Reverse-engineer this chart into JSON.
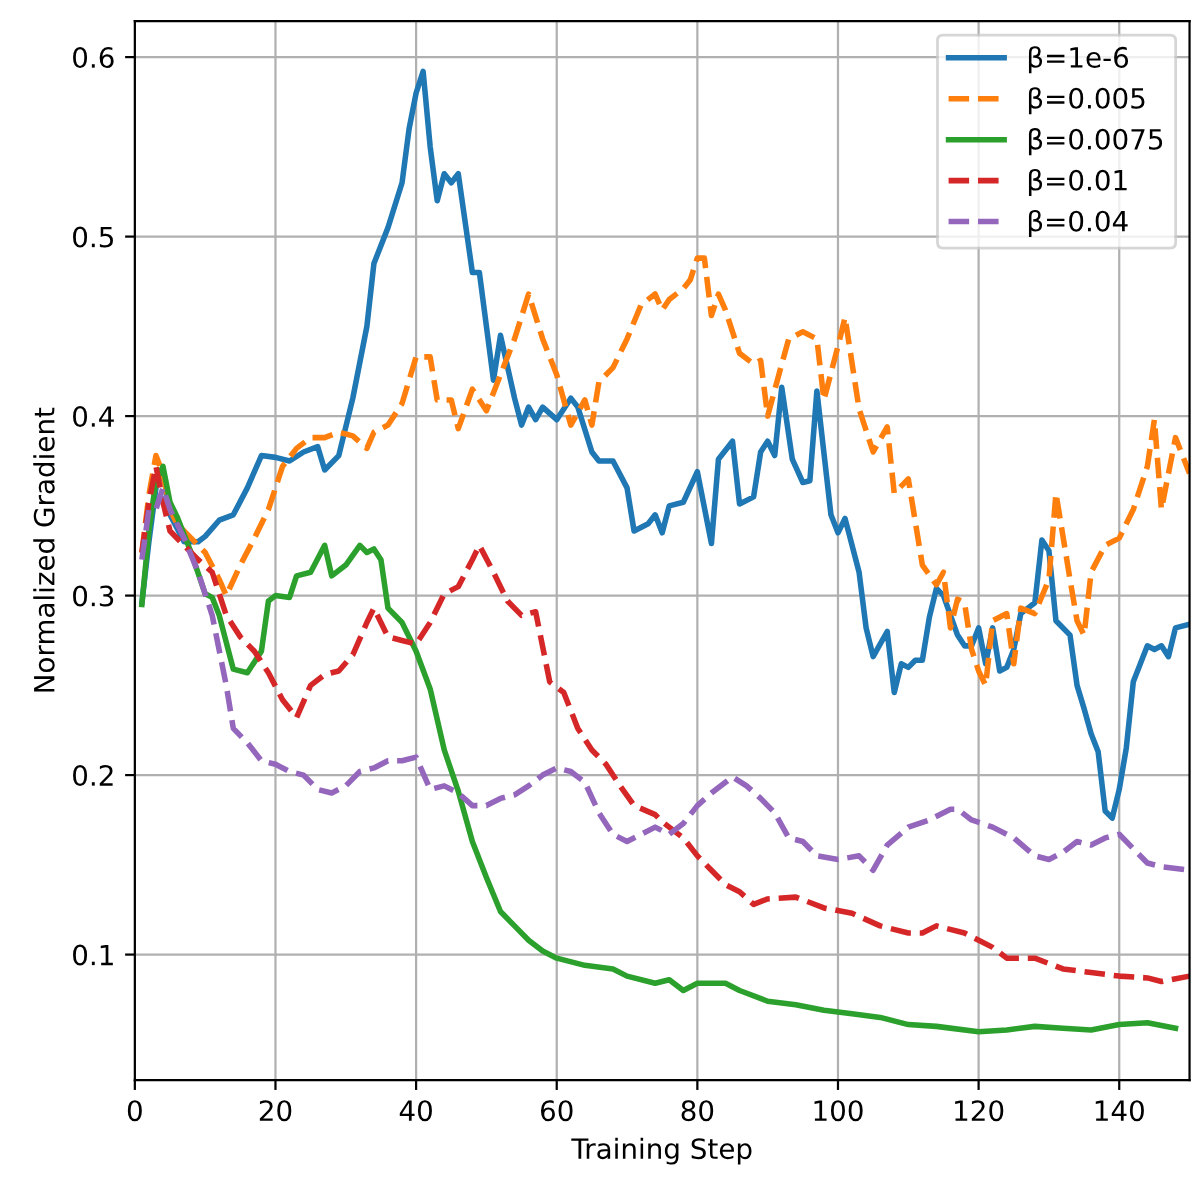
{
  "chart_data": {
    "type": "line",
    "xlabel": "Training Step",
    "ylabel": "Normalized Gradient",
    "xlim": [
      0,
      150
    ],
    "ylim": [
      0.03,
      0.62
    ],
    "xticks": [
      0,
      20,
      40,
      60,
      80,
      100,
      120,
      140
    ],
    "yticks": [
      0.1,
      0.2,
      0.3,
      0.4,
      0.5,
      0.6
    ],
    "grid": true,
    "legend": "top right",
    "series": [
      {
        "name": "β=1e-6",
        "color": "#1f77b4",
        "line_style": "solid",
        "x": [
          1,
          2,
          3,
          4,
          5,
          7,
          9,
          10,
          12,
          14,
          16,
          18,
          20,
          22,
          24,
          26,
          27,
          29,
          31,
          33,
          34,
          36,
          38,
          39,
          40,
          41,
          42,
          43,
          44,
          45,
          46,
          48,
          49,
          51,
          52,
          54,
          55,
          56,
          57,
          58,
          60,
          62,
          63,
          65,
          66,
          68,
          70,
          71,
          73,
          74,
          75,
          76,
          78,
          80,
          82,
          83,
          85,
          86,
          88,
          89,
          90,
          91,
          92,
          93.5,
          95,
          96,
          97,
          99,
          100,
          101,
          103,
          104,
          105,
          107,
          108,
          109,
          110,
          111,
          112,
          113,
          114,
          115,
          117,
          118,
          119,
          120,
          121,
          122,
          123,
          124,
          125,
          126,
          127,
          128,
          129,
          130,
          131,
          133,
          134,
          135,
          136,
          137,
          138,
          139,
          140,
          141,
          142,
          143,
          144,
          145,
          146,
          147,
          148,
          150
        ],
        "values": [
          0.296,
          0.33,
          0.36,
          0.37,
          0.345,
          0.33,
          0.33,
          0.333,
          0.342,
          0.345,
          0.36,
          0.378,
          0.377,
          0.375,
          0.38,
          0.383,
          0.37,
          0.378,
          0.41,
          0.45,
          0.485,
          0.505,
          0.53,
          0.56,
          0.58,
          0.592,
          0.55,
          0.52,
          0.535,
          0.53,
          0.535,
          0.48,
          0.48,
          0.42,
          0.445,
          0.41,
          0.395,
          0.405,
          0.398,
          0.405,
          0.398,
          0.41,
          0.405,
          0.38,
          0.375,
          0.375,
          0.36,
          0.336,
          0.34,
          0.345,
          0.335,
          0.35,
          0.352,
          0.369,
          0.329,
          0.376,
          0.386,
          0.351,
          0.355,
          0.38,
          0.386,
          0.378,
          0.416,
          0.376,
          0.363,
          0.364,
          0.414,
          0.345,
          0.335,
          0.343,
          0.313,
          0.282,
          0.266,
          0.28,
          0.246,
          0.262,
          0.26,
          0.264,
          0.264,
          0.288,
          0.304,
          0.3,
          0.278,
          0.272,
          0.272,
          0.282,
          0.262,
          0.282,
          0.258,
          0.26,
          0.27,
          0.29,
          0.293,
          0.296,
          0.331,
          0.325,
          0.286,
          0.278,
          0.25,
          0.237,
          0.223,
          0.213,
          0.18,
          0.176,
          0.192,
          0.215,
          0.252,
          0.262,
          0.272,
          0.27,
          0.272,
          0.266,
          0.282,
          0.284
        ]
      },
      {
        "name": "β=0.005",
        "color": "#ff7f0e",
        "line_style": "dashed",
        "x": [
          1,
          2,
          3,
          4,
          5,
          6,
          8,
          10,
          12,
          13,
          15,
          17,
          19,
          21,
          23,
          25,
          27,
          29,
          31,
          33,
          34,
          36,
          38,
          40,
          42,
          43,
          45,
          46,
          48,
          50,
          52,
          54,
          56,
          58,
          60,
          62,
          64,
          65,
          66,
          68,
          70,
          72,
          74,
          75,
          76,
          78,
          79,
          80,
          81,
          82,
          83,
          84,
          86,
          88,
          89,
          90,
          92,
          93,
          95,
          97,
          98,
          100,
          101,
          103,
          105,
          107,
          108,
          110,
          112,
          114,
          115,
          116,
          117,
          118,
          119,
          120,
          121,
          122,
          124,
          125,
          126,
          128,
          130,
          131,
          133,
          134,
          135,
          136,
          138,
          140,
          142,
          144,
          145,
          146,
          148,
          150
        ],
        "values": [
          0.324,
          0.356,
          0.378,
          0.368,
          0.348,
          0.34,
          0.332,
          0.324,
          0.309,
          0.3,
          0.317,
          0.332,
          0.348,
          0.372,
          0.382,
          0.388,
          0.388,
          0.391,
          0.389,
          0.382,
          0.391,
          0.395,
          0.407,
          0.433,
          0.433,
          0.409,
          0.409,
          0.393,
          0.415,
          0.403,
          0.423,
          0.443,
          0.468,
          0.443,
          0.423,
          0.395,
          0.409,
          0.395,
          0.419,
          0.427,
          0.443,
          0.462,
          0.468,
          0.459,
          0.465,
          0.471,
          0.476,
          0.488,
          0.488,
          0.456,
          0.468,
          0.459,
          0.435,
          0.429,
          0.431,
          0.4,
          0.429,
          0.443,
          0.447,
          0.443,
          0.409,
          0.439,
          0.455,
          0.404,
          0.38,
          0.394,
          0.357,
          0.365,
          0.317,
          0.306,
          0.313,
          0.282,
          0.298,
          0.296,
          0.27,
          0.258,
          0.25,
          0.286,
          0.29,
          0.262,
          0.293,
          0.29,
          0.309,
          0.357,
          0.309,
          0.286,
          0.278,
          0.313,
          0.328,
          0.332,
          0.348,
          0.372,
          0.398,
          0.348,
          0.388,
          0.368
        ]
      },
      {
        "name": "β=0.0075",
        "color": "#2ca02c",
        "line_style": "solid",
        "x": [
          1,
          2,
          3,
          4,
          5,
          6,
          8,
          10,
          11,
          12,
          14,
          16,
          18,
          19,
          20,
          22,
          23,
          25,
          27,
          28,
          30,
          32,
          33,
          34,
          35,
          36,
          38,
          40,
          42,
          44,
          46,
          48,
          50,
          52,
          54,
          56,
          58,
          60,
          64,
          68,
          70,
          74,
          76,
          78,
          80,
          84,
          86,
          90,
          94,
          98,
          102,
          106,
          110,
          114,
          120,
          124,
          128,
          132,
          136,
          140,
          144,
          148
        ],
        "values": [
          0.295,
          0.336,
          0.364,
          0.372,
          0.352,
          0.344,
          0.324,
          0.301,
          0.299,
          0.289,
          0.259,
          0.257,
          0.269,
          0.297,
          0.3,
          0.299,
          0.311,
          0.313,
          0.328,
          0.311,
          0.317,
          0.328,
          0.324,
          0.326,
          0.32,
          0.293,
          0.285,
          0.269,
          0.248,
          0.214,
          0.191,
          0.163,
          0.143,
          0.124,
          0.116,
          0.108,
          0.102,
          0.098,
          0.094,
          0.092,
          0.088,
          0.084,
          0.086,
          0.08,
          0.084,
          0.084,
          0.08,
          0.074,
          0.072,
          0.069,
          0.067,
          0.065,
          0.061,
          0.06,
          0.057,
          0.058,
          0.06,
          0.059,
          0.058,
          0.061,
          0.062,
          0.059
        ]
      },
      {
        "name": "β=0.01",
        "color": "#d62728",
        "line_style": "dashed",
        "x": [
          1,
          2,
          3,
          4,
          5,
          7,
          9,
          11,
          13,
          15,
          17,
          19,
          21,
          23,
          25,
          27,
          29,
          31,
          33,
          34,
          36,
          38,
          40,
          42,
          44,
          46,
          48,
          49,
          51,
          53,
          55,
          57,
          59,
          61,
          63,
          65,
          67,
          69,
          71,
          74,
          75,
          78,
          80,
          82,
          84,
          86,
          88,
          90,
          94,
          98,
          102,
          106,
          110,
          112,
          114,
          118,
          122,
          124,
          128,
          132,
          136,
          140,
          144,
          146,
          150
        ],
        "values": [
          0.324,
          0.352,
          0.372,
          0.352,
          0.336,
          0.328,
          0.32,
          0.313,
          0.289,
          0.277,
          0.269,
          0.257,
          0.242,
          0.232,
          0.25,
          0.256,
          0.258,
          0.267,
          0.285,
          0.293,
          0.277,
          0.275,
          0.273,
          0.285,
          0.301,
          0.305,
          0.32,
          0.328,
          0.313,
          0.297,
          0.289,
          0.291,
          0.252,
          0.246,
          0.226,
          0.214,
          0.206,
          0.194,
          0.183,
          0.178,
          0.174,
          0.165,
          0.155,
          0.147,
          0.139,
          0.135,
          0.128,
          0.131,
          0.132,
          0.126,
          0.123,
          0.116,
          0.112,
          0.112,
          0.116,
          0.112,
          0.104,
          0.098,
          0.098,
          0.092,
          0.09,
          0.088,
          0.087,
          0.085,
          0.088
        ]
      },
      {
        "name": "β=0.04",
        "color": "#9467bd",
        "line_style": "dashed",
        "x": [
          1,
          2,
          3,
          4,
          5,
          7,
          9,
          11,
          13,
          14,
          16,
          18,
          20,
          22,
          24,
          26,
          28,
          30,
          32,
          34,
          36,
          38,
          40,
          42,
          44,
          46,
          48,
          50,
          52,
          54,
          56,
          58,
          60,
          62,
          64,
          66,
          68,
          70,
          72,
          74,
          76,
          78,
          80,
          82,
          84,
          85,
          87,
          89,
          91,
          93,
          95,
          97,
          100,
          103,
          105,
          107,
          110,
          113,
          116,
          117,
          119,
          122,
          125,
          128,
          130,
          132,
          134,
          136,
          138,
          140,
          142,
          144,
          146,
          150
        ],
        "values": [
          0.32,
          0.348,
          0.348,
          0.36,
          0.348,
          0.332,
          0.313,
          0.289,
          0.25,
          0.226,
          0.218,
          0.208,
          0.206,
          0.202,
          0.2,
          0.192,
          0.19,
          0.194,
          0.202,
          0.204,
          0.208,
          0.208,
          0.21,
          0.192,
          0.194,
          0.19,
          0.183,
          0.183,
          0.187,
          0.189,
          0.194,
          0.2,
          0.204,
          0.202,
          0.196,
          0.179,
          0.167,
          0.163,
          0.167,
          0.171,
          0.167,
          0.173,
          0.183,
          0.19,
          0.196,
          0.199,
          0.194,
          0.187,
          0.179,
          0.165,
          0.163,
          0.155,
          0.153,
          0.155,
          0.147,
          0.161,
          0.171,
          0.175,
          0.181,
          0.181,
          0.175,
          0.171,
          0.165,
          0.155,
          0.153,
          0.157,
          0.163,
          0.161,
          0.165,
          0.167,
          0.159,
          0.151,
          0.149,
          0.147
        ]
      }
    ]
  }
}
